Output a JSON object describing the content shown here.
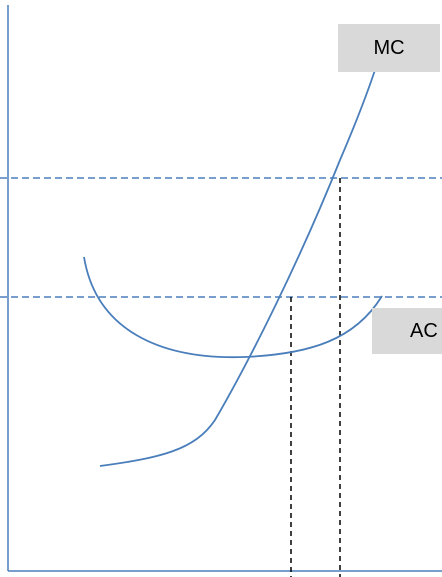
{
  "labels": {
    "mc": "MC",
    "ac": "AC"
  },
  "colors": {
    "curve": "#4a7ebb",
    "axis": "#4a7ebb",
    "price_guide": "#4a7ebb",
    "quantity_guide": "#000000",
    "label_background": "#d9d9d9"
  },
  "curves": [
    {
      "name": "MC",
      "shape": "rising"
    },
    {
      "name": "AC",
      "shape": "u-shaped"
    }
  ],
  "guides": {
    "horizontal": 2,
    "vertical": 2,
    "style": "dashed"
  }
}
